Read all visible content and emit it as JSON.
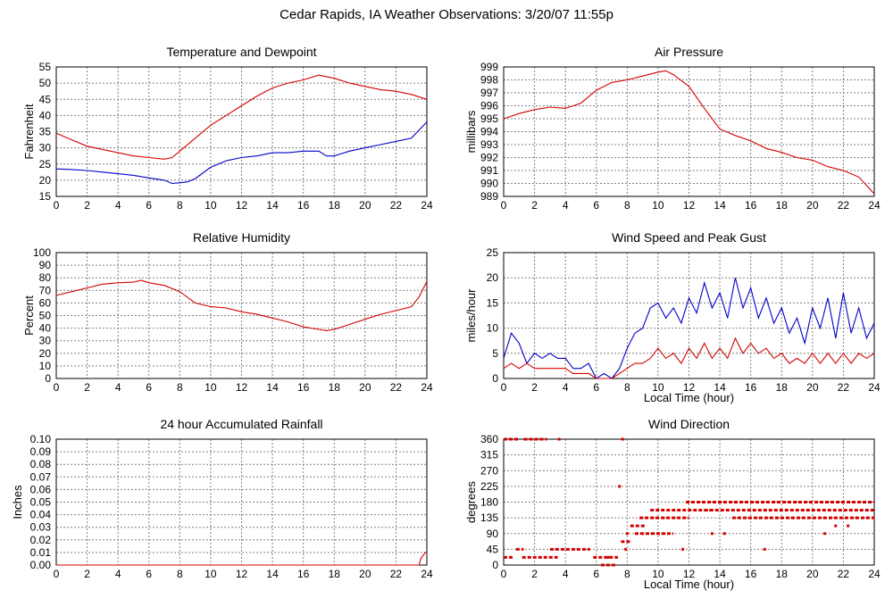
{
  "title": "Cedar Rapids, IA Weather Observations: 3/20/07 11:55p",
  "colors": {
    "red": "#d40000",
    "blue": "#0000c8",
    "grid": "#808080"
  },
  "chart_data": [
    {
      "id": "temp",
      "type": "line",
      "title": "Temperature and Dewpoint",
      "xlabel": "",
      "ylabel": "Fahrenheit",
      "xlim": [
        0,
        24
      ],
      "ylim": [
        15,
        55
      ],
      "xticks": [
        0,
        2,
        4,
        6,
        8,
        10,
        12,
        14,
        16,
        18,
        20,
        22,
        24
      ],
      "yticks": [
        15,
        20,
        25,
        30,
        35,
        40,
        45,
        50,
        55
      ],
      "grid": true,
      "series": [
        {
          "color": "red",
          "x": [
            0,
            1,
            2,
            3,
            4,
            5,
            6,
            7,
            7.5,
            8,
            9,
            10,
            11,
            12,
            13,
            14,
            15,
            16,
            17,
            17.5,
            18,
            19,
            20,
            21,
            22,
            23,
            24
          ],
          "y": [
            34.5,
            32.5,
            30.5,
            29.5,
            28.5,
            27.5,
            27,
            26.5,
            27,
            29,
            33,
            37,
            40,
            43,
            46,
            48.5,
            50,
            51,
            52.5,
            52,
            51.5,
            50,
            49,
            48,
            47.5,
            46.5,
            45
          ]
        },
        {
          "color": "blue",
          "x": [
            0,
            1,
            2,
            3,
            4,
            5,
            6,
            7,
            7.5,
            8,
            8.5,
            9,
            10,
            11,
            12,
            13,
            14,
            15,
            16,
            17,
            17.5,
            18,
            19,
            20,
            21,
            22,
            23,
            24
          ],
          "y": [
            23.5,
            23.3,
            23,
            22.5,
            22,
            21.5,
            20.7,
            20,
            19,
            19.2,
            19.5,
            20.5,
            24,
            26,
            27,
            27.5,
            28.5,
            28.5,
            29,
            29,
            27.5,
            27.5,
            29,
            30,
            31,
            32,
            33,
            38
          ]
        }
      ]
    },
    {
      "id": "pressure",
      "type": "line",
      "title": "Air Pressure",
      "xlabel": "",
      "ylabel": "millibars",
      "xlim": [
        0,
        24
      ],
      "ylim": [
        989,
        999
      ],
      "xticks": [
        0,
        2,
        4,
        6,
        8,
        10,
        12,
        14,
        16,
        18,
        20,
        22,
        24
      ],
      "yticks": [
        989,
        990,
        991,
        992,
        993,
        994,
        995,
        996,
        997,
        998,
        999
      ],
      "grid": true,
      "series": [
        {
          "color": "red",
          "x": [
            0,
            1,
            2,
            3,
            4,
            5,
            6,
            7,
            8,
            9,
            10,
            10.5,
            11,
            12,
            13,
            14,
            15,
            16,
            17,
            18,
            19,
            20,
            21,
            22,
            23,
            24
          ],
          "y": [
            995,
            995.4,
            995.7,
            995.9,
            995.8,
            996.2,
            997.2,
            997.8,
            998,
            998.3,
            998.6,
            998.7,
            998.4,
            997.5,
            995.8,
            994.2,
            993.7,
            993.3,
            992.7,
            992.4,
            992,
            991.8,
            991.3,
            991,
            990.5,
            989.2
          ]
        }
      ]
    },
    {
      "id": "humidity",
      "type": "line",
      "title": "Relative Humidity",
      "xlabel": "",
      "ylabel": "Percent",
      "xlim": [
        0,
        24
      ],
      "ylim": [
        0,
        100
      ],
      "xticks": [
        0,
        2,
        4,
        6,
        8,
        10,
        12,
        14,
        16,
        18,
        20,
        22,
        24
      ],
      "yticks": [
        0,
        10,
        20,
        30,
        40,
        50,
        60,
        70,
        80,
        90,
        100
      ],
      "grid": true,
      "series": [
        {
          "color": "red",
          "x": [
            0,
            1,
            2,
            3,
            4,
            5,
            5.5,
            6,
            7,
            8,
            9,
            10,
            11,
            12,
            13,
            14,
            15,
            16,
            17,
            17.5,
            18,
            19,
            20,
            21,
            22,
            23,
            23.5,
            24
          ],
          "y": [
            66,
            69,
            72,
            75,
            76,
            76.5,
            78,
            76,
            74,
            69,
            60,
            57,
            56,
            53,
            51,
            48,
            45,
            41,
            39,
            38,
            39,
            43,
            47,
            51,
            54,
            57,
            65,
            77
          ]
        }
      ]
    },
    {
      "id": "wind",
      "type": "line",
      "title": "Wind Speed and Peak Gust",
      "xlabel": "Local Time (hour)",
      "ylabel": "miles/hour",
      "xlim": [
        0,
        24
      ],
      "ylim": [
        0,
        25
      ],
      "xticks": [
        0,
        2,
        4,
        6,
        8,
        10,
        12,
        14,
        16,
        18,
        20,
        22,
        24
      ],
      "yticks": [
        0,
        5,
        10,
        15,
        20,
        25
      ],
      "grid": true,
      "series": [
        {
          "color": "blue",
          "x": [
            0,
            0.5,
            1,
            1.5,
            2,
            2.5,
            3,
            3.5,
            4,
            4.5,
            5,
            5.5,
            6,
            6.5,
            7,
            7.5,
            8,
            8.5,
            9,
            9.5,
            10,
            10.5,
            11,
            11.5,
            12,
            12.5,
            13,
            13.5,
            14,
            14.5,
            15,
            15.5,
            16,
            16.5,
            17,
            17.5,
            18,
            18.5,
            19,
            19.5,
            20,
            20.5,
            21,
            21.5,
            22,
            22.5,
            23,
            23.5,
            24
          ],
          "y": [
            4,
            9,
            7,
            3,
            5,
            4,
            5,
            4,
            4,
            2,
            2,
            3,
            0,
            1,
            0,
            2,
            6,
            9,
            10,
            14,
            15,
            12,
            14,
            11,
            16,
            13,
            19,
            14,
            17,
            12,
            20,
            14,
            18,
            12,
            16,
            11,
            14,
            9,
            12,
            7,
            14,
            10,
            16,
            8,
            17,
            9,
            14,
            8,
            11
          ]
        },
        {
          "color": "red",
          "x": [
            0,
            0.5,
            1,
            1.5,
            2,
            2.5,
            3,
            3.5,
            4,
            4.5,
            5,
            5.5,
            6,
            6.5,
            7,
            7.5,
            8,
            8.5,
            9,
            9.5,
            10,
            10.5,
            11,
            11.5,
            12,
            12.5,
            13,
            13.5,
            14,
            14.5,
            15,
            15.5,
            16,
            16.5,
            17,
            17.5,
            18,
            18.5,
            19,
            19.5,
            20,
            20.5,
            21,
            21.5,
            22,
            22.5,
            23,
            23.5,
            24
          ],
          "y": [
            2,
            3,
            2,
            3,
            2,
            2,
            2,
            2,
            2,
            1,
            1,
            1,
            0,
            0,
            0,
            1,
            2,
            3,
            3,
            4,
            6,
            4,
            5,
            3,
            6,
            4,
            7,
            4,
            6,
            4,
            8,
            5,
            7,
            5,
            6,
            4,
            5,
            3,
            4,
            3,
            5,
            3,
            5,
            3,
            5,
            3,
            5,
            4,
            5
          ]
        }
      ]
    },
    {
      "id": "rain",
      "type": "line",
      "title": "24 hour Accumulated Rainfall",
      "xlabel": "",
      "ylabel": "Inches",
      "xlim": [
        0,
        24
      ],
      "ylim": [
        0,
        0.1
      ],
      "xticks": [
        0,
        2,
        4,
        6,
        8,
        10,
        12,
        14,
        16,
        18,
        20,
        22,
        24
      ],
      "yticks": [
        "0.00",
        "0.01",
        "0.02",
        "0.03",
        "0.04",
        "0.05",
        "0.06",
        "0.07",
        "0.08",
        "0.09",
        "0.10"
      ],
      "grid": true,
      "series": [
        {
          "color": "red",
          "x": [
            0,
            23.5,
            23.6,
            23.9,
            24
          ],
          "y": [
            0,
            0,
            0.005,
            0.01,
            0.01
          ]
        }
      ]
    },
    {
      "id": "winddir",
      "type": "scatter",
      "title": "Wind Direction",
      "xlabel": "Local Time (hour)",
      "ylabel": "degrees",
      "xlim": [
        0,
        24
      ],
      "ylim": [
        0,
        360
      ],
      "xticks": [
        0,
        2,
        4,
        6,
        8,
        10,
        12,
        14,
        16,
        18,
        20,
        22,
        24
      ],
      "yticks": [
        0,
        45,
        90,
        135,
        180,
        225,
        270,
        315,
        360
      ],
      "grid": true,
      "series": [
        {
          "color": "red",
          "segments": [
            {
              "x0": 0,
              "x1": 1.0,
              "y": 360
            },
            {
              "x0": 1.3,
              "x1": 2.8,
              "y": 360
            },
            {
              "x0": 0,
              "x1": 0.6,
              "y": 22
            },
            {
              "x0": 0.8,
              "x1": 1.3,
              "y": 45
            },
            {
              "x0": 1.2,
              "x1": 3.5,
              "y": 22
            },
            {
              "x0": 3.0,
              "x1": 5.6,
              "y": 45
            },
            {
              "x0": 5.8,
              "x1": 7.4,
              "y": 22
            },
            {
              "x0": 6.3,
              "x1": 7.3,
              "y": 0
            },
            {
              "x0": 7.6,
              "x1": 8.3,
              "y": 67
            },
            {
              "x0": 8.2,
              "x1": 9.2,
              "y": 112
            },
            {
              "x0": 8.8,
              "x1": 12.0,
              "y": 135
            },
            {
              "x0": 9.5,
              "x1": 13.5,
              "y": 157
            },
            {
              "x0": 11.8,
              "x1": 24,
              "y": 180
            },
            {
              "x0": 13.0,
              "x1": 24,
              "y": 157
            },
            {
              "x0": 14.8,
              "x1": 24,
              "y": 135
            },
            {
              "x0": 8.5,
              "x1": 11.0,
              "y": 90
            }
          ],
          "points": {
            "x": [
              3.6,
              7.7,
              7.5,
              6.8,
              7.9,
              8.0,
              11.6,
              13.5,
              14.3,
              16.9,
              20.8,
              21.5,
              22.3
            ],
            "y": [
              360,
              360,
              225,
              22,
              45,
              90,
              45,
              90,
              90,
              45,
              90,
              112,
              112
            ]
          }
        }
      ]
    }
  ]
}
